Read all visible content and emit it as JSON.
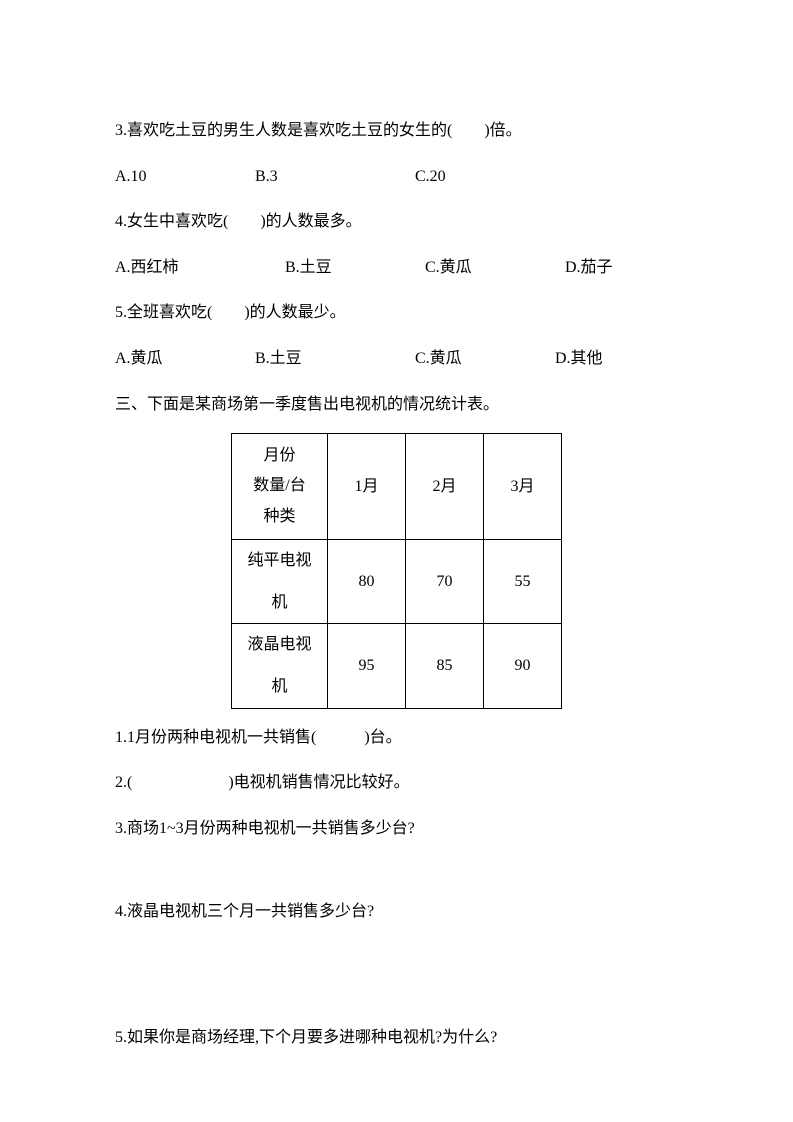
{
  "q3": {
    "text": "3.喜欢吃土豆的男生人数是喜欢吃土豆的女生的(　　)倍。",
    "options": {
      "a": "A.10",
      "b": "B.3",
      "c": "C.20"
    }
  },
  "q4": {
    "text": "4.女生中喜欢吃(　　)的人数最多。",
    "options": {
      "a": "A.西红柿",
      "b": "B.土豆",
      "c": "C.黄瓜",
      "d": "D.茄子"
    }
  },
  "q5": {
    "text": "5.全班喜欢吃(　　)的人数最少。",
    "options": {
      "a": "A.黄瓜",
      "b": "B.土豆",
      "c": "C.黄瓜",
      "d": "D.其他"
    }
  },
  "section3": {
    "title": "三、下面是某商场第一季度售出电视机的情况统计表。"
  },
  "table": {
    "header_line1": "月份",
    "header_line2": "数量/台",
    "header_line3": "种类",
    "months": [
      "1月",
      "2月",
      "3月"
    ],
    "rows": [
      {
        "type": "纯平电视机",
        "values": [
          "80",
          "70",
          "55"
        ]
      },
      {
        "type": "液晶电视机",
        "values": [
          "95",
          "85",
          "90"
        ]
      }
    ]
  },
  "sub": {
    "q1": "1.1月份两种电视机一共销售(　　　)台。",
    "q2": "2.(　　　　　　)电视机销售情况比较好。",
    "q3": "3.商场1~3月份两种电视机一共销售多少台?",
    "q4": "4.液晶电视机三个月一共销售多少台?",
    "q5": "5.如果你是商场经理,下个月要多进哪种电视机?为什么?"
  }
}
